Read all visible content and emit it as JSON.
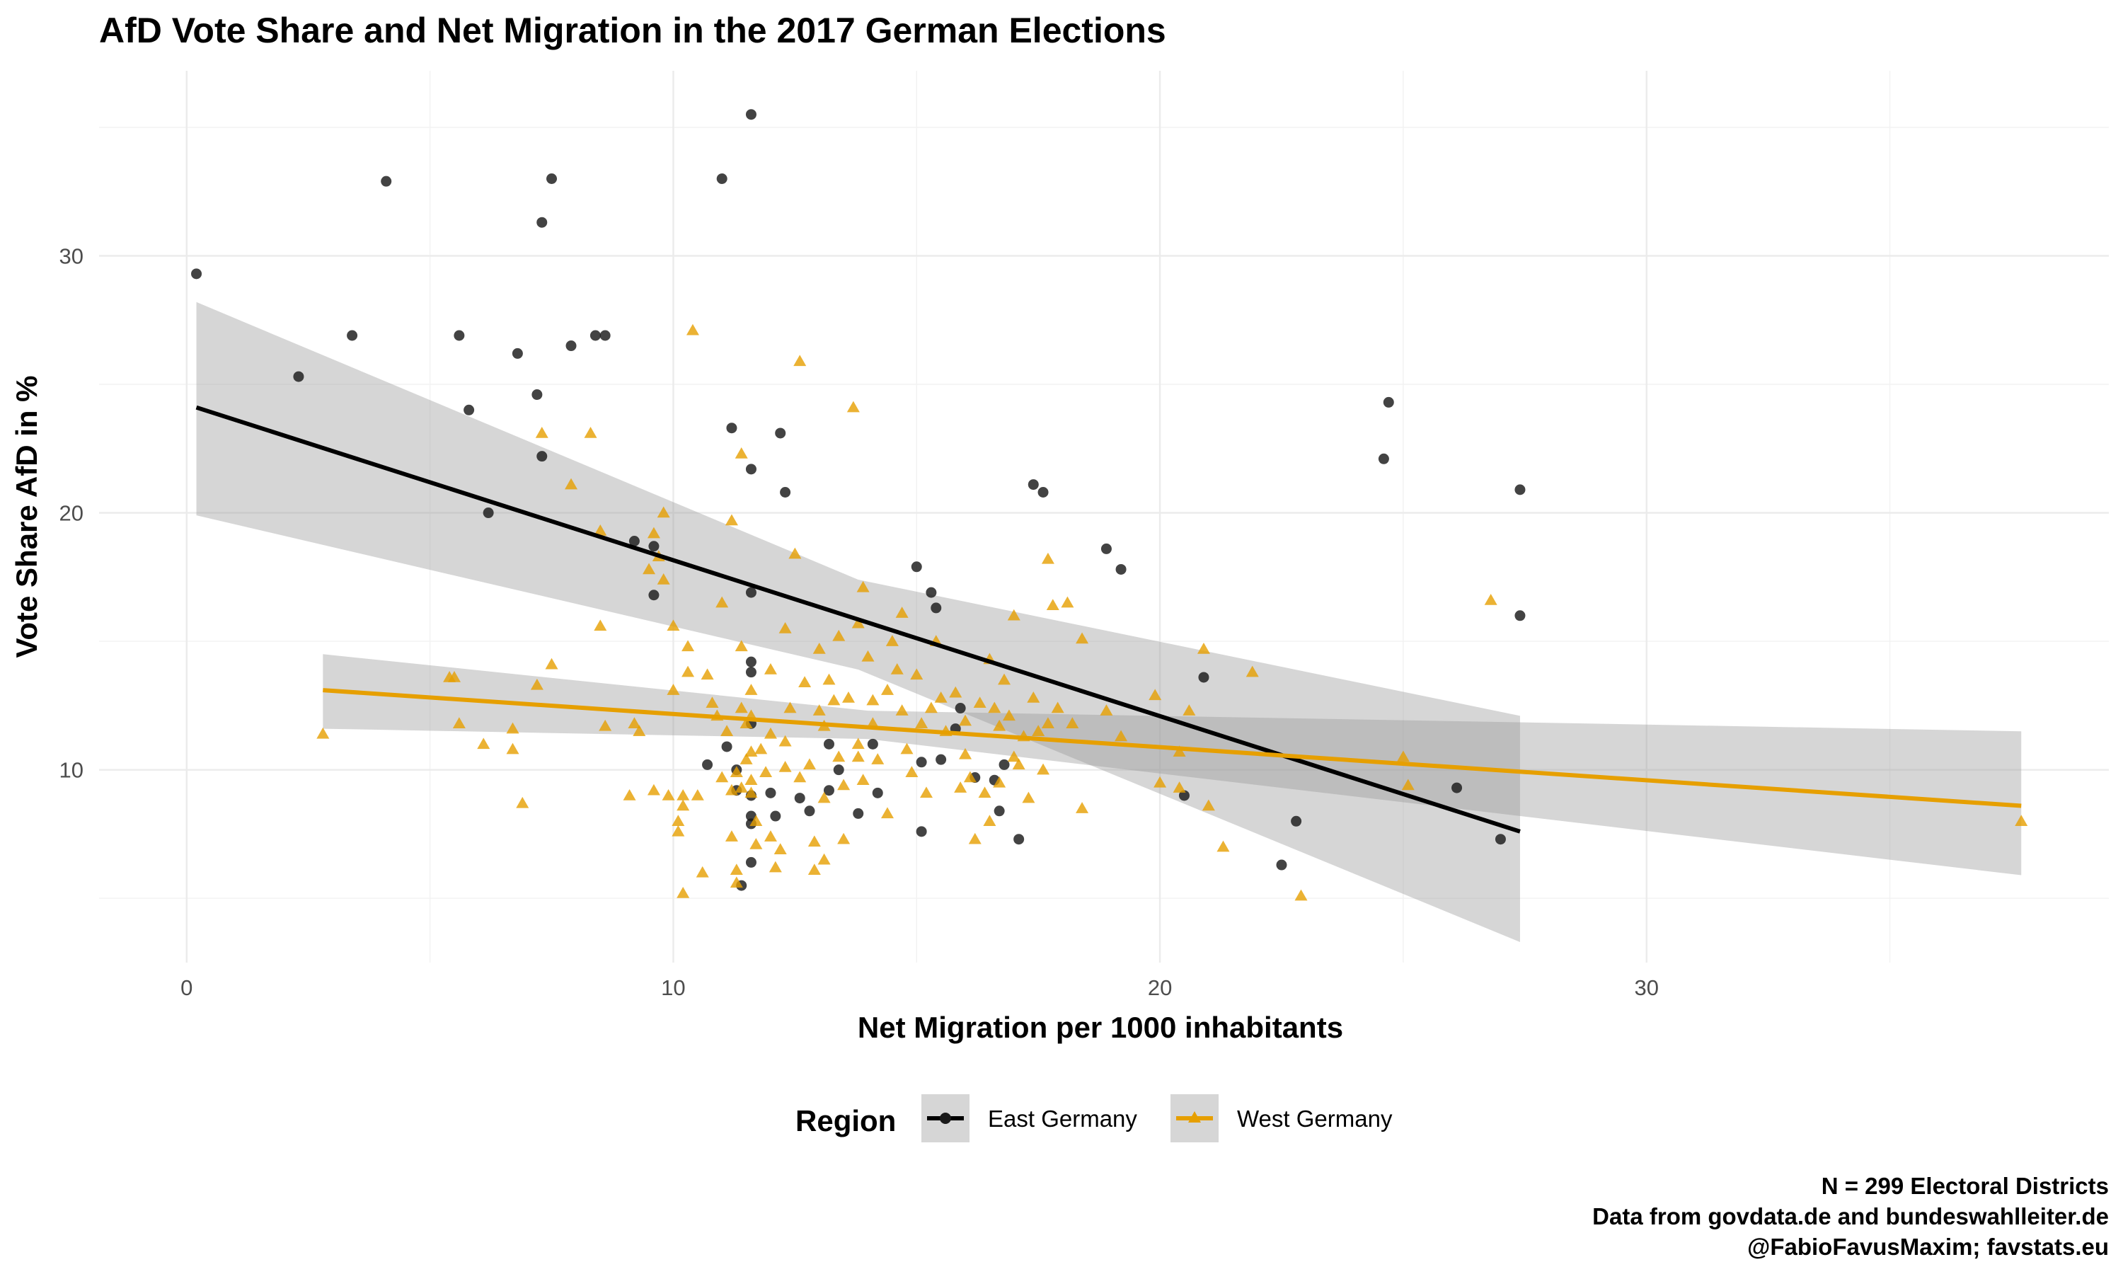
{
  "chart_data": {
    "type": "scatter",
    "title": "AfD Vote Share and Net Migration in the 2017 German Elections",
    "xlabel": "Net Migration per 1000 inhabitants",
    "ylabel": "Vote Share AfD in %",
    "xlim": [
      -1.8,
      39.5
    ],
    "ylim": [
      2.5,
      37.2
    ],
    "x_ticks": [
      0,
      10,
      20,
      30
    ],
    "y_ticks": [
      10,
      20,
      30
    ],
    "x_minor_ticks": [
      5,
      15,
      25,
      35
    ],
    "y_minor_ticks": [
      5,
      15,
      25,
      35
    ],
    "grid": true,
    "legend": {
      "title": "Region",
      "position": "bottom",
      "entries": [
        "East Germany",
        "West Germany"
      ]
    },
    "caption": [
      "N = 299 Electoral Districts",
      "Data from govdata.de and bundeswahlleiter.de",
      "@FabioFavusMaxim; favstats.eu"
    ],
    "colors": {
      "east": "#1a1a1a",
      "west": "#E69F00",
      "confidence_band": "#999999",
      "east_line": "#000000",
      "west_line": "#E69F00"
    },
    "series": [
      {
        "name": "East Germany",
        "marker": "circle",
        "points": [
          [
            0.2,
            29.3
          ],
          [
            2.3,
            25.3
          ],
          [
            3.4,
            26.9
          ],
          [
            4.1,
            32.9
          ],
          [
            5.6,
            26.9
          ],
          [
            5.8,
            24.0
          ],
          [
            6.2,
            20.0
          ],
          [
            6.8,
            26.2
          ],
          [
            7.2,
            24.6
          ],
          [
            7.3,
            31.3
          ],
          [
            7.3,
            22.2
          ],
          [
            7.5,
            33.0
          ],
          [
            7.9,
            26.5
          ],
          [
            8.4,
            26.9
          ],
          [
            8.6,
            26.9
          ],
          [
            9.2,
            18.9
          ],
          [
            9.6,
            18.7
          ],
          [
            9.6,
            16.8
          ],
          [
            10.7,
            10.2
          ],
          [
            11.0,
            33.0
          ],
          [
            11.2,
            23.3
          ],
          [
            11.1,
            10.9
          ],
          [
            11.3,
            10.0
          ],
          [
            11.3,
            9.2
          ],
          [
            11.4,
            5.5
          ],
          [
            11.6,
            35.5
          ],
          [
            11.6,
            21.7
          ],
          [
            11.6,
            16.9
          ],
          [
            11.6,
            14.2
          ],
          [
            11.6,
            13.8
          ],
          [
            11.6,
            11.8
          ],
          [
            11.6,
            9.0
          ],
          [
            11.6,
            8.2
          ],
          [
            11.6,
            7.9
          ],
          [
            11.6,
            6.4
          ],
          [
            12.0,
            9.1
          ],
          [
            12.1,
            8.2
          ],
          [
            12.2,
            23.1
          ],
          [
            12.3,
            20.8
          ],
          [
            12.6,
            8.9
          ],
          [
            12.8,
            8.4
          ],
          [
            13.2,
            11.0
          ],
          [
            13.2,
            9.2
          ],
          [
            13.4,
            10.0
          ],
          [
            13.8,
            8.3
          ],
          [
            14.1,
            11.0
          ],
          [
            14.2,
            9.1
          ],
          [
            15.0,
            17.9
          ],
          [
            15.1,
            7.6
          ],
          [
            15.1,
            10.3
          ],
          [
            15.3,
            16.9
          ],
          [
            15.4,
            16.3
          ],
          [
            15.5,
            10.4
          ],
          [
            15.8,
            11.6
          ],
          [
            15.9,
            12.4
          ],
          [
            16.2,
            9.7
          ],
          [
            16.6,
            9.6
          ],
          [
            16.7,
            8.4
          ],
          [
            16.8,
            10.2
          ],
          [
            17.1,
            7.3
          ],
          [
            17.4,
            21.1
          ],
          [
            17.6,
            20.8
          ],
          [
            18.9,
            18.6
          ],
          [
            19.2,
            17.8
          ],
          [
            20.5,
            9.0
          ],
          [
            20.9,
            13.6
          ],
          [
            22.5,
            6.3
          ],
          [
            22.8,
            8.0
          ],
          [
            24.6,
            22.1
          ],
          [
            24.7,
            24.3
          ],
          [
            26.1,
            9.3
          ],
          [
            27.0,
            7.3
          ],
          [
            27.4,
            16.0
          ],
          [
            27.4,
            20.9
          ]
        ]
      },
      {
        "name": "West Germany",
        "marker": "triangle",
        "points": [
          [
            2.8,
            11.4
          ],
          [
            5.4,
            13.6
          ],
          [
            5.5,
            13.6
          ],
          [
            5.6,
            11.8
          ],
          [
            6.1,
            11.0
          ],
          [
            6.7,
            11.6
          ],
          [
            6.7,
            10.8
          ],
          [
            6.9,
            8.7
          ],
          [
            7.2,
            13.3
          ],
          [
            7.3,
            23.1
          ],
          [
            7.5,
            14.1
          ],
          [
            7.9,
            21.1
          ],
          [
            8.3,
            23.1
          ],
          [
            8.5,
            19.3
          ],
          [
            8.5,
            15.6
          ],
          [
            8.6,
            11.7
          ],
          [
            9.1,
            9.0
          ],
          [
            9.2,
            11.8
          ],
          [
            9.3,
            11.5
          ],
          [
            9.5,
            17.8
          ],
          [
            9.6,
            19.2
          ],
          [
            9.6,
            9.2
          ],
          [
            9.7,
            18.3
          ],
          [
            9.8,
            20.0
          ],
          [
            9.8,
            17.4
          ],
          [
            9.9,
            9.0
          ],
          [
            10.0,
            15.6
          ],
          [
            10.0,
            13.1
          ],
          [
            10.1,
            7.6
          ],
          [
            10.1,
            8.0
          ],
          [
            10.2,
            9.0
          ],
          [
            10.2,
            8.6
          ],
          [
            10.2,
            5.2
          ],
          [
            10.3,
            14.8
          ],
          [
            10.3,
            13.8
          ],
          [
            10.4,
            27.1
          ],
          [
            10.5,
            9.0
          ],
          [
            10.6,
            6.0
          ],
          [
            10.7,
            13.7
          ],
          [
            10.8,
            12.6
          ],
          [
            10.9,
            12.1
          ],
          [
            11.0,
            16.5
          ],
          [
            11.0,
            9.7
          ],
          [
            11.1,
            11.5
          ],
          [
            11.2,
            19.7
          ],
          [
            11.2,
            9.2
          ],
          [
            11.2,
            7.4
          ],
          [
            11.3,
            9.9
          ],
          [
            11.3,
            6.1
          ],
          [
            11.3,
            5.6
          ],
          [
            11.4,
            22.3
          ],
          [
            11.4,
            14.8
          ],
          [
            11.4,
            12.4
          ],
          [
            11.4,
            9.3
          ],
          [
            11.5,
            11.8
          ],
          [
            11.5,
            10.4
          ],
          [
            11.6,
            13.1
          ],
          [
            11.6,
            12.1
          ],
          [
            11.6,
            10.7
          ],
          [
            11.6,
            9.6
          ],
          [
            11.6,
            9.1
          ],
          [
            11.7,
            8.0
          ],
          [
            11.7,
            7.1
          ],
          [
            11.8,
            10.8
          ],
          [
            11.9,
            9.9
          ],
          [
            12.0,
            11.4
          ],
          [
            12.0,
            7.4
          ],
          [
            12.0,
            13.9
          ],
          [
            12.1,
            6.2
          ],
          [
            12.2,
            6.9
          ],
          [
            12.3,
            15.5
          ],
          [
            12.3,
            11.1
          ],
          [
            12.3,
            10.1
          ],
          [
            12.4,
            12.4
          ],
          [
            12.5,
            18.4
          ],
          [
            12.6,
            25.9
          ],
          [
            12.6,
            9.7
          ],
          [
            12.7,
            13.4
          ],
          [
            12.8,
            10.2
          ],
          [
            12.9,
            7.2
          ],
          [
            12.9,
            6.1
          ],
          [
            13.0,
            14.7
          ],
          [
            13.0,
            12.3
          ],
          [
            13.1,
            11.7
          ],
          [
            13.1,
            8.9
          ],
          [
            13.1,
            6.5
          ],
          [
            13.2,
            13.5
          ],
          [
            13.3,
            12.7
          ],
          [
            13.4,
            15.2
          ],
          [
            13.4,
            10.5
          ],
          [
            13.5,
            9.4
          ],
          [
            13.5,
            7.3
          ],
          [
            13.6,
            12.8
          ],
          [
            13.7,
            24.1
          ],
          [
            13.8,
            15.7
          ],
          [
            13.8,
            11.0
          ],
          [
            13.8,
            10.5
          ],
          [
            13.9,
            17.1
          ],
          [
            13.9,
            9.6
          ],
          [
            14.0,
            14.4
          ],
          [
            14.1,
            12.7
          ],
          [
            14.1,
            11.8
          ],
          [
            14.2,
            10.4
          ],
          [
            14.4,
            13.1
          ],
          [
            14.4,
            8.3
          ],
          [
            14.5,
            15.0
          ],
          [
            14.6,
            13.9
          ],
          [
            14.7,
            16.1
          ],
          [
            14.7,
            12.3
          ],
          [
            14.8,
            10.8
          ],
          [
            14.9,
            9.9
          ],
          [
            15.0,
            13.7
          ],
          [
            15.1,
            11.8
          ],
          [
            15.2,
            9.1
          ],
          [
            15.3,
            12.4
          ],
          [
            15.4,
            15.0
          ],
          [
            15.5,
            12.8
          ],
          [
            15.6,
            11.5
          ],
          [
            15.8,
            13.0
          ],
          [
            15.9,
            9.3
          ],
          [
            16.0,
            11.9
          ],
          [
            16.0,
            10.6
          ],
          [
            16.1,
            9.7
          ],
          [
            16.2,
            7.3
          ],
          [
            16.3,
            12.6
          ],
          [
            16.4,
            9.1
          ],
          [
            16.5,
            14.3
          ],
          [
            16.5,
            8.0
          ],
          [
            16.6,
            12.4
          ],
          [
            16.7,
            11.7
          ],
          [
            16.7,
            9.5
          ],
          [
            16.8,
            13.5
          ],
          [
            16.9,
            12.1
          ],
          [
            17.0,
            16.0
          ],
          [
            17.0,
            10.5
          ],
          [
            17.1,
            10.2
          ],
          [
            17.2,
            11.3
          ],
          [
            17.3,
            8.9
          ],
          [
            17.4,
            12.8
          ],
          [
            17.5,
            11.5
          ],
          [
            17.6,
            10.0
          ],
          [
            17.7,
            18.2
          ],
          [
            17.7,
            11.8
          ],
          [
            17.8,
            16.4
          ],
          [
            17.9,
            12.4
          ],
          [
            18.1,
            16.5
          ],
          [
            18.2,
            11.8
          ],
          [
            18.4,
            15.1
          ],
          [
            18.4,
            8.5
          ],
          [
            18.9,
            12.3
          ],
          [
            19.2,
            11.3
          ],
          [
            19.9,
            12.9
          ],
          [
            20.0,
            9.5
          ],
          [
            20.4,
            10.7
          ],
          [
            20.4,
            9.3
          ],
          [
            20.6,
            12.3
          ],
          [
            20.9,
            14.7
          ],
          [
            21.0,
            8.6
          ],
          [
            21.3,
            7.0
          ],
          [
            21.9,
            13.8
          ],
          [
            22.9,
            5.1
          ],
          [
            25.0,
            10.5
          ],
          [
            25.1,
            9.4
          ],
          [
            26.8,
            16.6
          ],
          [
            37.7,
            8.0
          ]
        ]
      }
    ],
    "trend_lines": [
      {
        "series": "East Germany",
        "x": [
          0.2,
          27.4
        ],
        "y": [
          24.1,
          7.6
        ]
      },
      {
        "series": "West Germany",
        "x": [
          2.8,
          37.7
        ],
        "y": [
          13.1,
          8.6
        ]
      }
    ],
    "confidence_bands": [
      {
        "series": "East Germany",
        "x": [
          0.2,
          13.8,
          27.4
        ],
        "lower": [
          19.9,
          13.9,
          3.3
        ],
        "upper": [
          28.2,
          17.4,
          12.1
        ]
      },
      {
        "series": "West Germany",
        "x": [
          2.8,
          14.0,
          37.7
        ],
        "lower": [
          11.6,
          11.2,
          5.9
        ],
        "upper": [
          14.5,
          12.3,
          11.5
        ]
      }
    ]
  }
}
